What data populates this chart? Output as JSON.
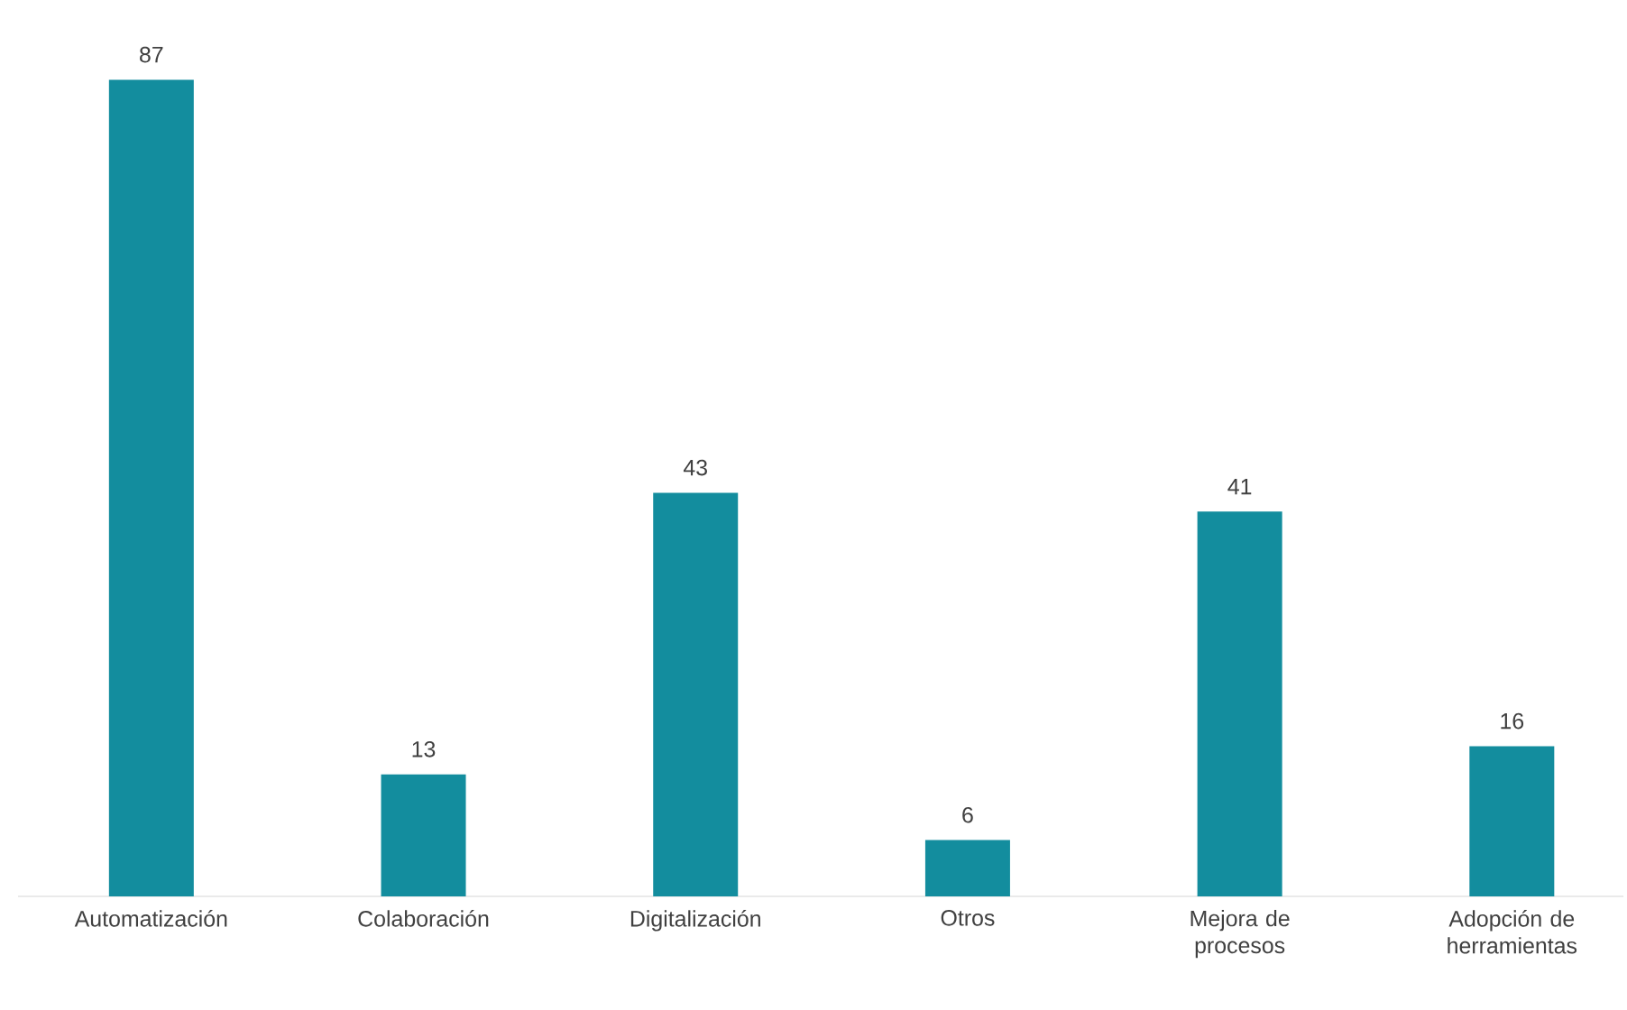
{
  "chart_data": {
    "type": "bar",
    "categories": [
      "Automatización",
      "Colaboración",
      "Digitalización",
      "Otros",
      "Mejora de procesos",
      "Adopción de herramientas"
    ],
    "values": [
      87,
      13,
      43,
      6,
      41,
      16
    ],
    "color": "#138d9e",
    "data_labels": true
  }
}
